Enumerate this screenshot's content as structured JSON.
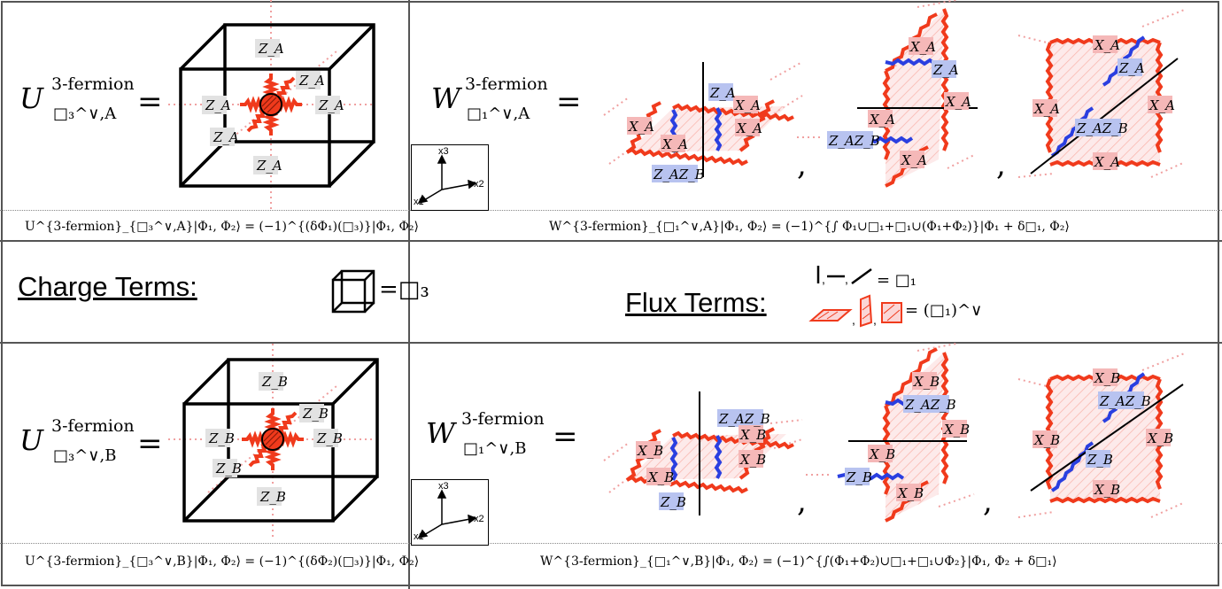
{
  "top_left": {
    "lhs_symbol": "U",
    "lhs_superscript": "3-fermion",
    "lhs_subscript": "□₃^∨,A",
    "equals": "=",
    "labels": [
      "Z_A",
      "Z_A",
      "Z_A",
      "Z_A",
      "Z_A",
      "Z_A"
    ],
    "caption": "U^{3-fermion}_{□₃^∨,A}|Φ₁, Φ₂⟩ = (−1)^{(δΦ₁)(□₃)}|Φ₁, Φ₂⟩"
  },
  "top_right": {
    "lhs_symbol": "W",
    "lhs_superscript": "3-fermion",
    "lhs_subscript": "□₁^∨,A",
    "equals": "=",
    "comma": ",",
    "axes": {
      "x1": "x1",
      "x2": "x2",
      "x3": "x3"
    },
    "labels_fig1": [
      "X_A",
      "X_A",
      "X_A",
      "X_A",
      "Z_A",
      "Z_AZ_B"
    ],
    "labels_fig2": [
      "X_A",
      "Z_A",
      "X_A",
      "X_A",
      "Z_AZ_B",
      "X_A"
    ],
    "labels_fig3": [
      "X_A",
      "Z_A",
      "X_A",
      "X_A",
      "Z_AZ_B",
      "X_A"
    ],
    "caption": "W^{3-fermion}_{□₁^∨,A}|Φ₁, Φ₂⟩ = (−1)^{∫ Φ₁∪□₁+□₁∪(Φ₁+Φ₂)}|Φ₁ + δ□₁, Φ₂⟩"
  },
  "middle": {
    "charge_heading": "Charge Terms:",
    "charge_equals": "=□₃",
    "flux_heading": "Flux Terms:",
    "flux_line1": "= □₁",
    "flux_line2": "= (□₁)^∨",
    "flux_sep": ","
  },
  "bottom_left": {
    "lhs_symbol": "U",
    "lhs_superscript": "3-fermion",
    "lhs_subscript": "□₃^∨,B",
    "equals": "=",
    "labels": [
      "Z_B",
      "Z_B",
      "Z_B",
      "Z_B",
      "Z_B",
      "Z_B"
    ],
    "caption": "U^{3-fermion}_{□₃^∨,B}|Φ₁, Φ₂⟩ = (−1)^{(δΦ₂)(□₃)}|Φ₁, Φ₂⟩"
  },
  "bottom_right": {
    "lhs_symbol": "W",
    "lhs_superscript": "3-fermion",
    "lhs_subscript": "□₁^∨,B",
    "equals": "=",
    "comma": ",",
    "axes": {
      "x1": "x1",
      "x2": "x2",
      "x3": "x3"
    },
    "labels_fig1": [
      "Z_AZ_B",
      "X_B",
      "X_B",
      "X_B",
      "X_B",
      "Z_B"
    ],
    "labels_fig2": [
      "X_B",
      "Z_AZ_B",
      "X_B",
      "X_B",
      "Z_B",
      "X_B"
    ],
    "labels_fig3": [
      "X_B",
      "Z_AZ_B",
      "X_B",
      "X_B",
      "Z_B",
      "X_B"
    ],
    "caption": "W^{3-fermion}_{□₁^∨,B}|Φ₁, Φ₂⟩ = (−1)^{∫(Φ₁+Φ₂)∪□₁+□₁∪Φ₂}|Φ₁, Φ₂ + δ□₁⟩"
  },
  "colors": {
    "red_string": "#f03a1c",
    "blue_string": "#2a3fe0",
    "x_label_bg": "#f5b8b8",
    "z_label_bg_gray": "#e2e2e2",
    "z_label_bg_blue": "#b8c3f0",
    "dotted_pink": "#f0a0a0",
    "border": "#555555"
  }
}
